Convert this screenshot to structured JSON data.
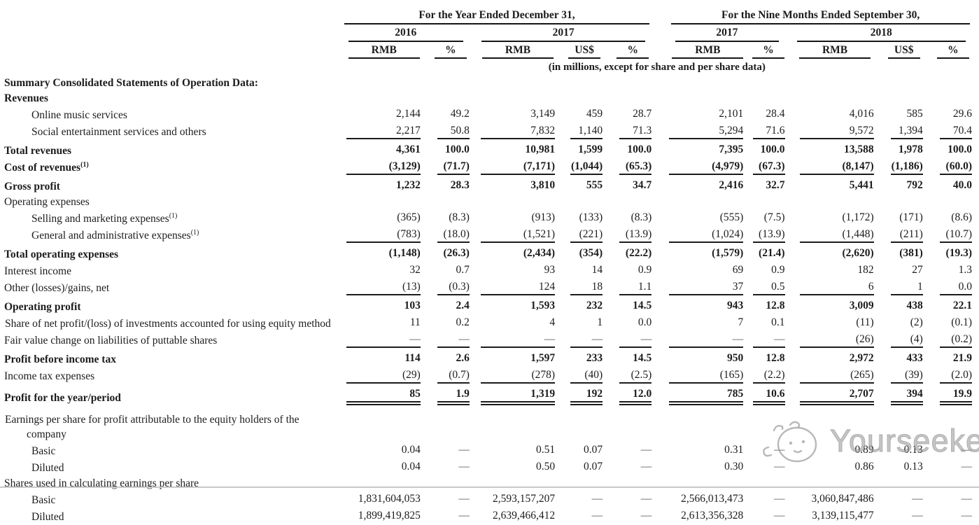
{
  "header": {
    "group1": "For the Year Ended December 31,",
    "group2": "For the Nine Months Ended September 30,",
    "years": [
      "2016",
      "2017",
      "2017",
      "2018"
    ],
    "cols": [
      "RMB",
      "%",
      "RMB",
      "US$",
      "%",
      "RMB",
      "%",
      "RMB",
      "US$",
      "%"
    ],
    "note": "(in millions, except for share and per share data)"
  },
  "colors": {
    "text": "#1c1c1c",
    "rule": "#151515",
    "watermark": "#9e9e9e"
  },
  "watermark": {
    "text": "Yourseeker",
    "icon": "yourseeker-mascot"
  },
  "rows": [
    {
      "label": "Summary Consolidated Statements of Operation Data:",
      "bold": true,
      "section": true
    },
    {
      "label": "Revenues",
      "bold": true,
      "section": true
    },
    {
      "label": "Online music services",
      "indent": true,
      "values": [
        "2,144",
        "49.2",
        "3,149",
        "459",
        "28.7",
        "2,101",
        "28.4",
        "4,016",
        "585",
        "29.6"
      ]
    },
    {
      "label": "Social entertainment services and others",
      "indent": true,
      "rule": true,
      "values": [
        "2,217",
        "50.8",
        "7,832",
        "1,140",
        "71.3",
        "5,294",
        "71.6",
        "9,572",
        "1,394",
        "70.4"
      ]
    },
    {
      "label": "Total revenues",
      "bold": true,
      "pt": true,
      "values": [
        "4,361",
        "100.0",
        "10,981",
        "1,599",
        "100.0",
        "7,395",
        "100.0",
        "13,588",
        "1,978",
        "100.0"
      ]
    },
    {
      "label": "Cost of revenues",
      "sup": "(1)",
      "bold": true,
      "rule": true,
      "values": [
        "(3,129)",
        "(71.7)",
        "(7,171)",
        "(1,044)",
        "(65.3)",
        "(4,979)",
        "(67.3)",
        "(8,147)",
        "(1,186)",
        "(60.0)"
      ]
    },
    {
      "label": "Gross profit",
      "bold": true,
      "pt": true,
      "values": [
        "1,232",
        "28.3",
        "3,810",
        "555",
        "34.7",
        "2,416",
        "32.7",
        "5,441",
        "792",
        "40.0"
      ]
    },
    {
      "label": "Operating expenses",
      "section": true
    },
    {
      "label": "Selling and marketing expenses",
      "sup": "(1)",
      "indent": true,
      "values": [
        "(365)",
        "(8.3)",
        "(913)",
        "(133)",
        "(8.3)",
        "(555)",
        "(7.5)",
        "(1,172)",
        "(171)",
        "(8.6)"
      ]
    },
    {
      "label": "General and administrative expenses",
      "sup": "(1)",
      "indent": true,
      "rule": true,
      "values": [
        "(783)",
        "(18.0)",
        "(1,521)",
        "(221)",
        "(13.9)",
        "(1,024)",
        "(13.9)",
        "(1,448)",
        "(211)",
        "(10.7)"
      ]
    },
    {
      "label": "Total operating expenses",
      "bold": true,
      "pt": true,
      "values": [
        "(1,148)",
        "(26.3)",
        "(2,434)",
        "(354)",
        "(22.2)",
        "(1,579)",
        "(21.4)",
        "(2,620)",
        "(381)",
        "(19.3)"
      ]
    },
    {
      "label": "Interest income",
      "values": [
        "32",
        "0.7",
        "93",
        "14",
        "0.9",
        "69",
        "0.9",
        "182",
        "27",
        "1.3"
      ]
    },
    {
      "label": "Other (losses)/gains, net",
      "rule": true,
      "values": [
        "(13)",
        "(0.3)",
        "124",
        "18",
        "1.1",
        "37",
        "0.5",
        "6",
        "1",
        "0.0"
      ]
    },
    {
      "label": "Operating profit",
      "bold": true,
      "pt": true,
      "values": [
        "103",
        "2.4",
        "1,593",
        "232",
        "14.5",
        "943",
        "12.8",
        "3,009",
        "438",
        "22.1"
      ]
    },
    {
      "label": "Share of net profit/(loss) of investments accounted for using equity method",
      "hang": true,
      "values": [
        "11",
        "0.2",
        "4",
        "1",
        "0.0",
        "7",
        "0.1",
        "(11)",
        "(2)",
        "(0.1)"
      ]
    },
    {
      "label": "Fair value change on liabilities of puttable shares",
      "rule": true,
      "values": [
        "—",
        "—",
        "—",
        "—",
        "—",
        "—",
        "—",
        "(26)",
        "(4)",
        "(0.2)"
      ]
    },
    {
      "label": "Profit before income tax",
      "bold": true,
      "pt": true,
      "values": [
        "114",
        "2.6",
        "1,597",
        "233",
        "14.5",
        "950",
        "12.8",
        "2,972",
        "433",
        "21.9"
      ]
    },
    {
      "label": "Income tax expenses",
      "rule": true,
      "values": [
        "(29)",
        "(0.7)",
        "(278)",
        "(40)",
        "(2.5)",
        "(165)",
        "(2.2)",
        "(265)",
        "(39)",
        "(2.0)"
      ]
    },
    {
      "label": "Profit for the year/period",
      "bold": true,
      "pt": true,
      "double": true,
      "values": [
        "85",
        "1.9",
        "1,319",
        "192",
        "12.0",
        "785",
        "10.6",
        "2,707",
        "394",
        "19.9"
      ]
    },
    {
      "label": "Earnings per share for profit attributable to the equity holders of the company",
      "section": true,
      "hang": true,
      "gaptop": true
    },
    {
      "label": "Basic",
      "indent": true,
      "values": [
        "0.04",
        "—",
        "0.51",
        "0.07",
        "—",
        "0.31",
        "—",
        "0.89",
        "0.13",
        "—"
      ]
    },
    {
      "label": "Diluted",
      "indent": true,
      "values": [
        "0.04",
        "—",
        "0.50",
        "0.07",
        "—",
        "0.30",
        "—",
        "0.86",
        "0.13",
        "—"
      ]
    },
    {
      "label": "Shares used in calculating earnings per share",
      "section": true
    },
    {
      "label": "Basic",
      "indent": true,
      "values": [
        "1,831,604,053",
        "—",
        "2,593,157,207",
        "—",
        "—",
        "2,566,013,473",
        "—",
        "3,060,847,486",
        "—",
        "—"
      ]
    },
    {
      "label": "Diluted",
      "indent": true,
      "values": [
        "1,899,419,825",
        "—",
        "2,639,466,412",
        "—",
        "—",
        "2,613,356,328",
        "—",
        "3,139,115,477",
        "—",
        "—"
      ]
    }
  ]
}
